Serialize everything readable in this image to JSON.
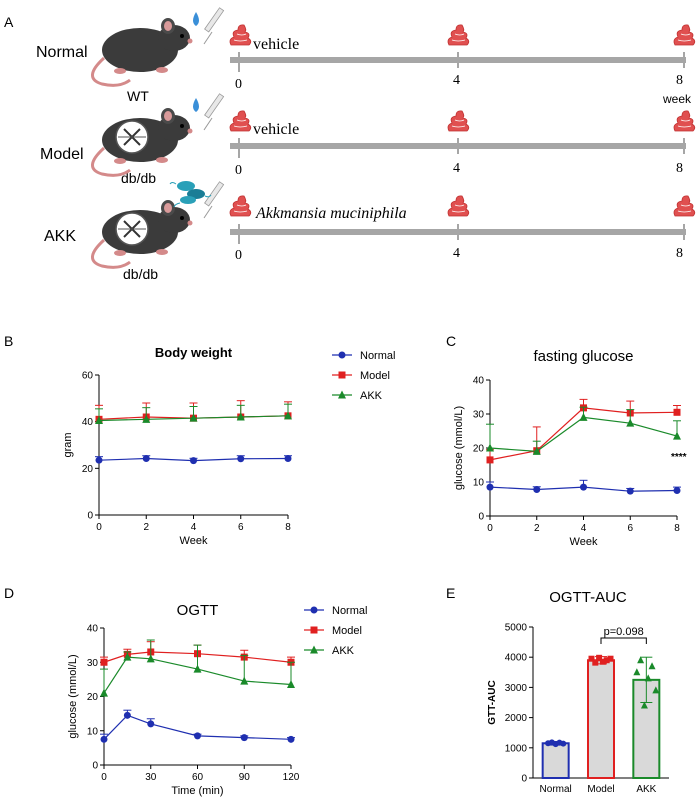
{
  "panel_labels": [
    "A",
    "B",
    "C",
    "D",
    "E"
  ],
  "panel_a": {
    "groups": [
      {
        "label": "Normal",
        "genotype": "WT",
        "treatment": "vehicle",
        "treatment_italic": false
      },
      {
        "label": "Model",
        "genotype": "db/db",
        "treatment": "vehicle",
        "treatment_italic": false
      },
      {
        "label": "AKK",
        "genotype": "db/db",
        "treatment": "Akkmansia muciniphila",
        "treatment_italic": true
      }
    ],
    "timepoints": [
      "0",
      "4",
      "8"
    ],
    "unit_label": "week",
    "icons": [
      "mouse-icon",
      "knockout-circle-icon",
      "water-drop-icon",
      "syringe-icon",
      "bacteria-icon",
      "feces-icon"
    ]
  },
  "chart_data": [
    {
      "id": "B",
      "type": "line",
      "title": "Body weight",
      "xlabel": "Week",
      "ylabel": "gram",
      "xlim": [
        0,
        8
      ],
      "ylim": [
        0,
        60
      ],
      "xticks": [
        0,
        2,
        4,
        6,
        8
      ],
      "yticks": [
        0,
        20,
        40,
        60
      ],
      "legend": "right",
      "series": [
        {
          "name": "Normal",
          "color": "#1f2fb0",
          "marker": "circle",
          "x": [
            0,
            2,
            4,
            6,
            8
          ],
          "y": [
            23.5,
            24.2,
            23.3,
            24.1,
            24.2
          ],
          "err": [
            1.5,
            1.2,
            1.0,
            1.3,
            1.2
          ]
        },
        {
          "name": "Model",
          "color": "#e02020",
          "marker": "square",
          "x": [
            0,
            2,
            4,
            6,
            8
          ],
          "y": [
            41,
            42,
            41.5,
            42,
            42.5
          ],
          "err": [
            6,
            6,
            6.5,
            7,
            6
          ]
        },
        {
          "name": "AKK",
          "color": "#1a8a2a",
          "marker": "triangle",
          "x": [
            0,
            2,
            4,
            6,
            8
          ],
          "y": [
            40.5,
            41,
            41.5,
            42,
            42.5
          ],
          "err": [
            5,
            5,
            5,
            5,
            5
          ]
        }
      ]
    },
    {
      "id": "C",
      "type": "line",
      "title": "fasting glucose",
      "xlabel": "Week",
      "ylabel": "glucose (mmol/L)",
      "xlim": [
        0,
        8
      ],
      "ylim": [
        0,
        40
      ],
      "xticks": [
        0,
        2,
        4,
        6,
        8
      ],
      "yticks": [
        0,
        10,
        20,
        30,
        40
      ],
      "annotation": "****",
      "series": [
        {
          "name": "Normal",
          "color": "#1f2fb0",
          "marker": "circle",
          "x": [
            0,
            2,
            4,
            6,
            8
          ],
          "y": [
            8.5,
            7.8,
            8.5,
            7.3,
            7.5
          ],
          "err": [
            1.5,
            0.8,
            2,
            0.8,
            1
          ]
        },
        {
          "name": "Model",
          "color": "#e02020",
          "marker": "square",
          "x": [
            0,
            2,
            4,
            6,
            8
          ],
          "y": [
            16.5,
            19.2,
            31.8,
            30.3,
            30.5
          ],
          "err": [
            3,
            7,
            2.5,
            3.5,
            2
          ]
        },
        {
          "name": "AKK",
          "color": "#1a8a2a",
          "marker": "triangle",
          "x": [
            0,
            2,
            4,
            6,
            8
          ],
          "y": [
            20,
            19,
            29,
            27.3,
            23.5
          ],
          "err": [
            7,
            3,
            3,
            4,
            4.5
          ]
        }
      ]
    },
    {
      "id": "D",
      "type": "line",
      "title": "OGTT",
      "xlabel": "Time (min)",
      "ylabel": "glucose  (mmol/L)",
      "xlim": [
        0,
        120
      ],
      "ylim": [
        0,
        40
      ],
      "xticks": [
        0,
        30,
        60,
        90,
        120
      ],
      "yticks": [
        0,
        10,
        20,
        30,
        40
      ],
      "legend": "right",
      "series": [
        {
          "name": "Normal",
          "color": "#1f2fb0",
          "marker": "circle",
          "x": [
            0,
            15,
            30,
            60,
            90,
            120
          ],
          "y": [
            7.5,
            14.5,
            12,
            8.5,
            8,
            7.5
          ],
          "err": [
            1.5,
            1.5,
            1.5,
            0.5,
            0.5,
            0.5
          ]
        },
        {
          "name": "Model",
          "color": "#e02020",
          "marker": "square",
          "x": [
            0,
            15,
            30,
            60,
            90,
            120
          ],
          "y": [
            30,
            32.3,
            33,
            32.5,
            31.5,
            30
          ],
          "err": [
            1.5,
            1.5,
            3,
            2.5,
            2,
            1.5
          ]
        },
        {
          "name": "AKK",
          "color": "#1a8a2a",
          "marker": "triangle",
          "x": [
            0,
            15,
            30,
            60,
            90,
            120
          ],
          "y": [
            21,
            31.5,
            31,
            28,
            24.5,
            23.5
          ],
          "err": [
            7,
            1.5,
            5.5,
            7,
            7.5,
            6.5
          ]
        }
      ]
    },
    {
      "id": "E",
      "type": "bar",
      "title": "OGTT-AUC",
      "xlabel": "",
      "ylabel": "GTT-AUC",
      "ylim": [
        0,
        5000
      ],
      "yticks": [
        0,
        1000,
        2000,
        3000,
        4000,
        5000
      ],
      "categories": [
        "Normal",
        "Model",
        "AKK"
      ],
      "values": [
        1150,
        3900,
        3250
      ],
      "errors": [
        60,
        120,
        750
      ],
      "colors": [
        "#1f2fb0",
        "#e02020",
        "#1a8a2a"
      ],
      "markers": [
        "circle",
        "square",
        "triangle"
      ],
      "points": [
        [
          1150,
          1180,
          1120,
          1170,
          1140
        ],
        [
          3950,
          3820,
          3980,
          3850,
          3900,
          3950
        ],
        [
          3500,
          3900,
          2400,
          3300,
          3700,
          2900
        ]
      ],
      "significance": {
        "from": "Model",
        "to": "AKK",
        "label": "p=0.098"
      }
    }
  ]
}
